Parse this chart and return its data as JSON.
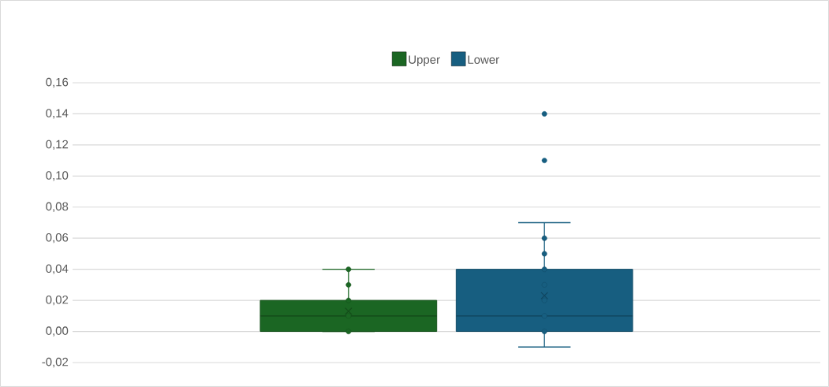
{
  "chart_data": {
    "type": "box",
    "categories": [
      null
    ],
    "series": [
      {
        "name": "Upper",
        "color": "#1b6623",
        "boxes": [
          {
            "low": 0.0,
            "q1": 0.0,
            "median": 0.01,
            "q3": 0.02,
            "high": 0.04,
            "mean": 0.013
          }
        ]
      },
      {
        "name": "Lower",
        "color": "#175e80",
        "boxes": [
          {
            "low": -0.01,
            "q1": 0.0,
            "median": 0.01,
            "q3": 0.04,
            "high": 0.07,
            "mean": 0.023,
            "outliers": [
              0.11,
              0.14
            ]
          }
        ]
      },
      {
        "type": "scatter",
        "color": "#1b6623",
        "x": [
          null,
          null,
          null,
          null,
          null
        ],
        "values": [
          0.0,
          0.01,
          0.02,
          0.03,
          0.04
        ]
      },
      {
        "type": "scatter",
        "color": "#175e80",
        "x": [
          null,
          null,
          null,
          null,
          null,
          null,
          null
        ],
        "values": [
          0.0,
          0.01,
          0.02,
          0.03,
          0.04,
          0.05,
          0.06
        ]
      }
    ],
    "ylim": [
      -0.02,
      0.16
    ],
    "yticks": [
      {
        "value": -0.02,
        "label": "-0,02"
      },
      {
        "value": 0.0,
        "label": "0,00"
      },
      {
        "value": 0.02,
        "label": "0,02"
      },
      {
        "value": 0.04,
        "label": "0,04"
      },
      {
        "value": 0.06,
        "label": "0,06"
      },
      {
        "value": 0.08,
        "label": "0,08"
      },
      {
        "value": 0.1,
        "label": "0,10"
      },
      {
        "value": 0.12,
        "label": "0,12"
      },
      {
        "value": 0.14,
        "label": "0,14"
      },
      {
        "value": 0.16,
        "label": "0,16"
      }
    ],
    "grid": "y",
    "legend": "top",
    "marker": "circle"
  }
}
